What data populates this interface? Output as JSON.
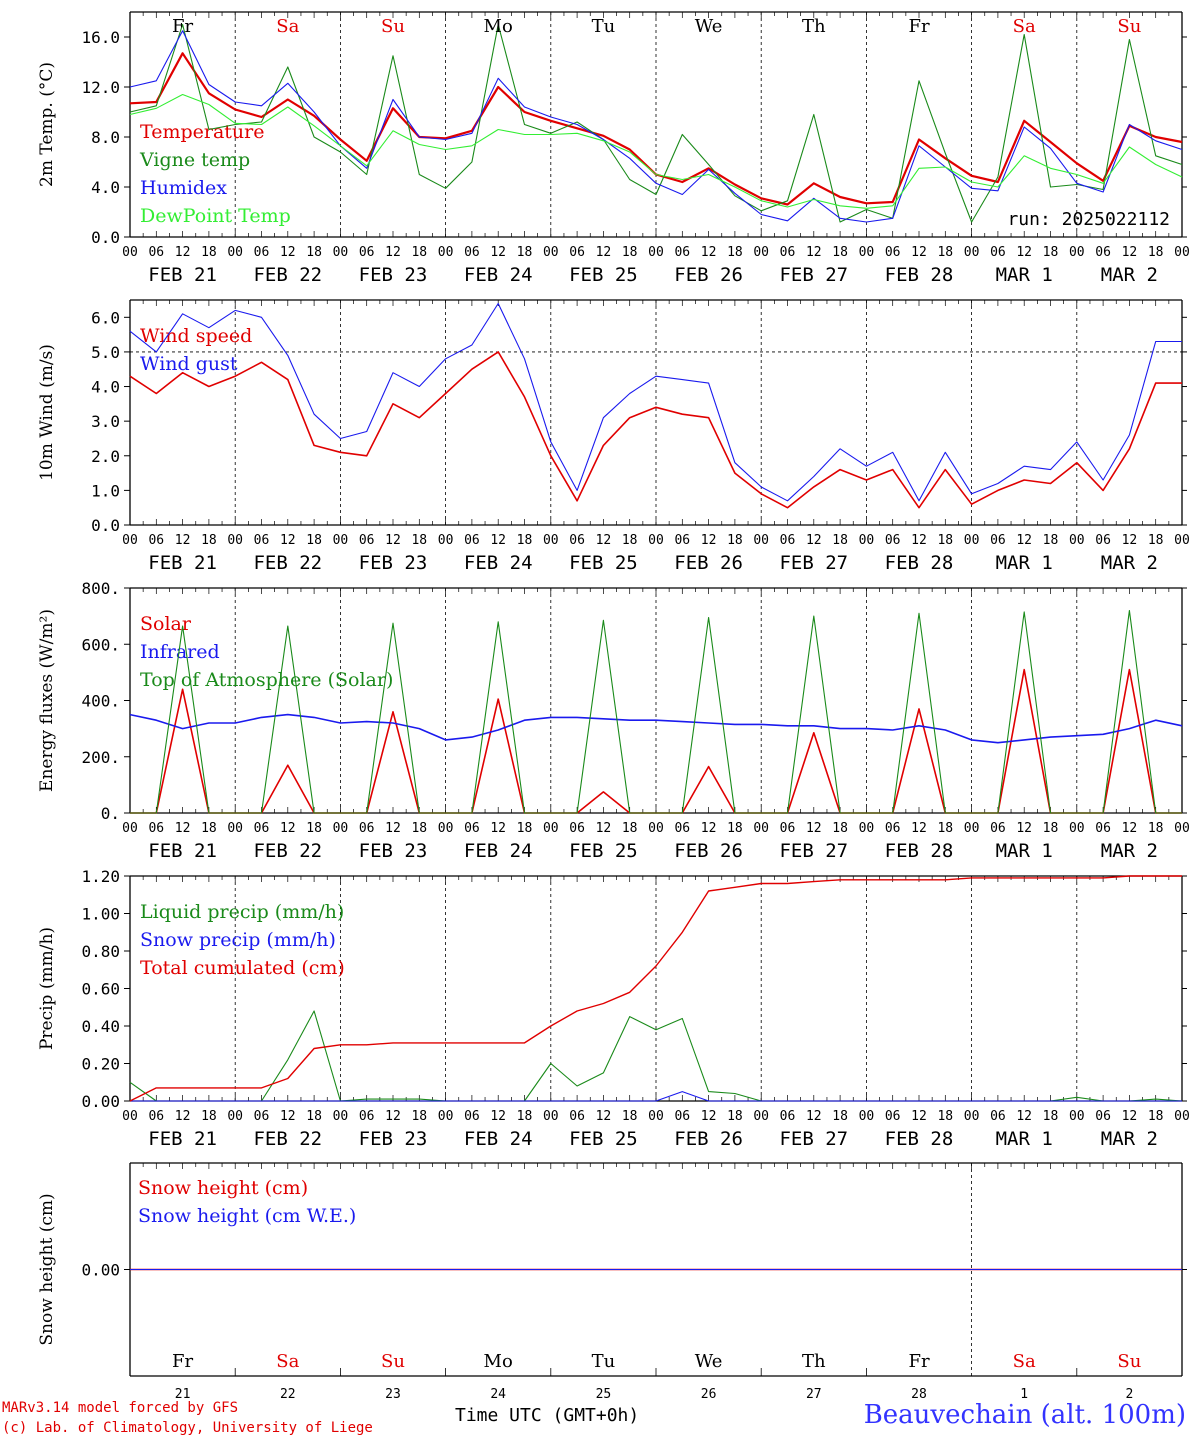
{
  "footer": {
    "model_line": "MARv3.14 model forced by GFS",
    "copyright_line": "(c) Lab. of Climatology, University of Liege",
    "time_label": "Time UTC (GMT+0h)",
    "station": "Beauvechain (alt. 100m)"
  },
  "axis": {
    "hour_ticks": [
      "00",
      "06",
      "12",
      "18"
    ],
    "end_tick": "00",
    "dates": [
      "FEB 21",
      "FEB 22",
      "FEB 23",
      "FEB 24",
      "FEB 25",
      "FEB 26",
      "FEB 27",
      "FEB 28",
      "MAR  1",
      "MAR  2"
    ],
    "weekdays": [
      "Fr",
      "Sa",
      "Su",
      "Mo",
      "Tu",
      "We",
      "Th",
      "Fr",
      "Sa",
      "Su"
    ],
    "weekday_colors": [
      "#000000",
      "#e00000",
      "#e00000",
      "#000000",
      "#000000",
      "#000000",
      "#000000",
      "#000000",
      "#e00000",
      "#e00000"
    ],
    "day_numbers": [
      "21",
      "22",
      "23",
      "24",
      "25",
      "26",
      "27",
      "28",
      "1",
      "2"
    ]
  },
  "colors": {
    "red": "#e00000",
    "green": "#1a8a1a",
    "blue": "#1a1aee",
    "lightgreen": "#33ee33"
  },
  "chart_data": [
    {
      "type": "line",
      "ylabel": "2m Temp. (°C)",
      "ylim": [
        0,
        18
      ],
      "yticks": [
        0,
        4,
        8,
        12,
        16
      ],
      "ytick_labels": [
        "0.0",
        "4.0",
        "8.0",
        "12.0",
        "16.0"
      ],
      "annotation": "run: 2025022112",
      "x": [
        0,
        6,
        12,
        18,
        24,
        30,
        36,
        42,
        48,
        54,
        60,
        66,
        72,
        78,
        84,
        90,
        96,
        102,
        108,
        114,
        120,
        126,
        132,
        138,
        144,
        150,
        156,
        162,
        168,
        174,
        180,
        186,
        192,
        198,
        204,
        210,
        216,
        222,
        228,
        234,
        240
      ],
      "series": [
        {
          "name": "Temperature",
          "color": "#e00000",
          "width": 2.2,
          "values": [
            10.7,
            10.8,
            14.7,
            11.5,
            10.2,
            9.6,
            11.0,
            9.7,
            7.8,
            6.1,
            10.3,
            8.0,
            7.9,
            8.5,
            12.0,
            10.0,
            9.3,
            8.7,
            8.1,
            7.0,
            5.0,
            4.4,
            5.5,
            4.2,
            3.1,
            2.6,
            4.3,
            3.2,
            2.7,
            2.8,
            7.8,
            6.3,
            4.9,
            4.4,
            9.3,
            7.6,
            5.9,
            4.5,
            8.9,
            8.0,
            7.6
          ]
        },
        {
          "name": "Vigne temp",
          "color": "#1a8a1a",
          "width": 1.1,
          "values": [
            10.0,
            10.5,
            17.0,
            8.6,
            9.0,
            9.2,
            13.6,
            8.0,
            6.8,
            5.0,
            14.5,
            5.0,
            3.9,
            6.0,
            17.0,
            9.0,
            8.3,
            9.2,
            7.8,
            4.6,
            3.4,
            8.2,
            5.8,
            3.3,
            2.1,
            2.9,
            9.8,
            1.2,
            2.2,
            1.5,
            12.5,
            6.7,
            1.2,
            4.8,
            16.2,
            4.0,
            4.2,
            3.8,
            15.8,
            6.5,
            5.8
          ]
        },
        {
          "name": "Humidex",
          "color": "#1a1aee",
          "width": 1.1,
          "values": [
            12.0,
            12.5,
            16.5,
            12.2,
            10.8,
            10.5,
            12.3,
            10.0,
            7.3,
            5.5,
            11.0,
            8.0,
            7.8,
            8.3,
            12.7,
            10.4,
            9.6,
            9.0,
            7.8,
            6.3,
            4.3,
            3.4,
            5.4,
            3.5,
            1.8,
            1.3,
            3.1,
            1.5,
            1.2,
            1.5,
            7.3,
            5.6,
            3.9,
            3.7,
            8.8,
            7.1,
            4.3,
            3.6,
            9.0,
            7.7,
            7.0
          ]
        },
        {
          "name": "DewPoint Temp",
          "color": "#33ee33",
          "width": 1.1,
          "values": [
            9.8,
            10.3,
            11.4,
            10.6,
            9.1,
            9.0,
            10.4,
            8.9,
            7.3,
            5.7,
            8.5,
            7.4,
            7.0,
            7.3,
            8.6,
            8.2,
            8.2,
            8.3,
            7.7,
            6.8,
            5.0,
            4.6,
            5.0,
            4.0,
            2.9,
            2.4,
            3.0,
            2.5,
            2.3,
            2.5,
            5.5,
            5.6,
            4.4,
            4.0,
            6.5,
            5.5,
            5.0,
            4.3,
            7.2,
            5.8,
            4.8
          ]
        }
      ]
    },
    {
      "type": "line",
      "ylabel": "10m Wind (m/s)",
      "ylim": [
        0,
        6.5
      ],
      "yticks": [
        0,
        1,
        2,
        3,
        4,
        5,
        6
      ],
      "ytick_labels": [
        "0.0",
        "1.0",
        "2.0",
        "3.0",
        "4.0",
        "5.0",
        "6.0"
      ],
      "ref_line": 5.0,
      "x": [
        0,
        6,
        12,
        18,
        24,
        30,
        36,
        42,
        48,
        54,
        60,
        66,
        72,
        78,
        84,
        90,
        96,
        102,
        108,
        114,
        120,
        126,
        132,
        138,
        144,
        150,
        156,
        162,
        168,
        174,
        180,
        186,
        192,
        198,
        204,
        210,
        216,
        222,
        228,
        234,
        240
      ],
      "series": [
        {
          "name": "Wind speed",
          "color": "#e00000",
          "width": 1.6,
          "values": [
            4.3,
            3.8,
            4.4,
            4.0,
            4.3,
            4.7,
            4.2,
            2.3,
            2.1,
            2.0,
            3.5,
            3.1,
            3.8,
            4.5,
            5.0,
            3.7,
            2.0,
            0.7,
            2.3,
            3.1,
            3.4,
            3.2,
            3.1,
            1.5,
            0.9,
            0.5,
            1.1,
            1.6,
            1.3,
            1.6,
            0.5,
            1.6,
            0.6,
            1.0,
            1.3,
            1.2,
            1.8,
            1.0,
            2.2,
            4.1,
            4.1
          ]
        },
        {
          "name": "Wind gust",
          "color": "#1a1aee",
          "width": 1.1,
          "values": [
            5.6,
            5.0,
            6.1,
            5.7,
            6.2,
            6.0,
            4.9,
            3.2,
            2.5,
            2.7,
            4.4,
            4.0,
            4.8,
            5.2,
            6.4,
            4.8,
            2.4,
            1.0,
            3.1,
            3.8,
            4.3,
            4.2,
            4.1,
            1.8,
            1.1,
            0.7,
            1.4,
            2.2,
            1.7,
            2.1,
            0.7,
            2.1,
            0.9,
            1.2,
            1.7,
            1.6,
            2.4,
            1.3,
            2.6,
            5.3,
            5.3
          ]
        }
      ]
    },
    {
      "type": "line",
      "ylabel": "Energy fluxes (W/m²)",
      "ylim": [
        0,
        800
      ],
      "yticks": [
        0,
        200,
        400,
        600,
        800
      ],
      "ytick_labels": [
        "0.",
        "200.",
        "400.",
        "600.",
        "800."
      ],
      "x": [
        0,
        6,
        12,
        18,
        24,
        30,
        36,
        42,
        48,
        54,
        60,
        66,
        72,
        78,
        84,
        90,
        96,
        102,
        108,
        114,
        120,
        126,
        132,
        138,
        144,
        150,
        156,
        162,
        168,
        174,
        180,
        186,
        192,
        198,
        204,
        210,
        216,
        222,
        228,
        234,
        240
      ],
      "series": [
        {
          "name": "Solar",
          "color": "#e00000",
          "width": 1.6,
          "values": [
            0,
            0,
            440,
            0,
            0,
            0,
            170,
            0,
            0,
            0,
            360,
            0,
            0,
            0,
            405,
            0,
            0,
            0,
            75,
            0,
            0,
            0,
            165,
            0,
            0,
            0,
            285,
            0,
            0,
            0,
            370,
            0,
            0,
            0,
            510,
            0,
            0,
            0,
            510,
            0,
            0
          ]
        },
        {
          "name": "Infrared",
          "color": "#1a1aee",
          "width": 1.6,
          "values": [
            350,
            330,
            300,
            320,
            320,
            340,
            350,
            340,
            320,
            325,
            320,
            300,
            260,
            270,
            295,
            330,
            340,
            340,
            335,
            330,
            330,
            325,
            320,
            315,
            315,
            310,
            310,
            300,
            300,
            295,
            310,
            295,
            260,
            250,
            260,
            270,
            275,
            280,
            300,
            330,
            310
          ]
        },
        {
          "name": "Top of Atmosphere (Solar)",
          "color": "#1a8a1a",
          "width": 1.1,
          "values": [
            0,
            0,
            665,
            0,
            0,
            0,
            665,
            0,
            0,
            0,
            675,
            0,
            0,
            0,
            680,
            0,
            0,
            0,
            685,
            0,
            0,
            0,
            695,
            0,
            0,
            0,
            700,
            0,
            0,
            0,
            710,
            0,
            0,
            0,
            715,
            0,
            0,
            0,
            720,
            0,
            0
          ]
        }
      ]
    },
    {
      "type": "line",
      "ylabel": "Precip (mm/h)",
      "ylim": [
        0,
        1.2
      ],
      "yticks": [
        0,
        0.2,
        0.4,
        0.6,
        0.8,
        1.0,
        1.2
      ],
      "ytick_labels": [
        "0.00",
        "0.20",
        "0.40",
        "0.60",
        "0.80",
        "1.00",
        "1.20"
      ],
      "x": [
        0,
        6,
        12,
        18,
        24,
        30,
        36,
        42,
        48,
        54,
        60,
        66,
        72,
        78,
        84,
        90,
        96,
        102,
        108,
        114,
        120,
        126,
        132,
        138,
        144,
        150,
        156,
        162,
        168,
        174,
        180,
        186,
        192,
        198,
        204,
        210,
        216,
        222,
        228,
        234,
        240
      ],
      "series": [
        {
          "name": "Liquid precip (mm/h)",
          "color": "#1a8a1a",
          "width": 1.1,
          "values": [
            0.1,
            0.0,
            0.0,
            0.0,
            0.0,
            0.0,
            0.22,
            0.48,
            0.0,
            0.01,
            0.01,
            0.01,
            0.0,
            0.0,
            0.0,
            0.0,
            0.2,
            0.08,
            0.15,
            0.45,
            0.38,
            0.44,
            0.05,
            0.04,
            0.0,
            0.0,
            0.0,
            0.0,
            0.0,
            0.0,
            0.0,
            0.0,
            0.0,
            0.0,
            0.0,
            0.0,
            0.02,
            0.0,
            0.0,
            0.01,
            0.0
          ]
        },
        {
          "name": "Snow precip (mm/h)",
          "color": "#1a1aee",
          "width": 1.1,
          "values": [
            0,
            0,
            0,
            0,
            0,
            0,
            0,
            0,
            0,
            0,
            0,
            0,
            0,
            0,
            0,
            0,
            0,
            0,
            0,
            0,
            0,
            0.05,
            0,
            0,
            0,
            0,
            0,
            0,
            0,
            0,
            0,
            0,
            0,
            0,
            0,
            0,
            0,
            0,
            0,
            0,
            0
          ]
        },
        {
          "name": "Total cumulated (cm)",
          "color": "#e00000",
          "width": 1.4,
          "values": [
            0.0,
            0.07,
            0.07,
            0.07,
            0.07,
            0.07,
            0.12,
            0.28,
            0.3,
            0.3,
            0.31,
            0.31,
            0.31,
            0.31,
            0.31,
            0.31,
            0.4,
            0.48,
            0.52,
            0.58,
            0.72,
            0.9,
            1.12,
            1.14,
            1.16,
            1.16,
            1.17,
            1.18,
            1.18,
            1.18,
            1.18,
            1.18,
            1.19,
            1.19,
            1.19,
            1.19,
            1.19,
            1.19,
            1.2,
            1.2,
            1.2
          ]
        }
      ]
    },
    {
      "type": "line",
      "ylabel": "Snow height (cm)",
      "yticks": [
        0
      ],
      "ytick_labels": [
        "0.00"
      ],
      "x": [
        0,
        240
      ],
      "series": [
        {
          "name": "Snow height (cm)",
          "color": "#e00000",
          "width": 1.4,
          "values": [
            0,
            0
          ]
        },
        {
          "name": "Snow height (cm W.E.)",
          "color": "#1a1aee",
          "width": 1.1,
          "values": [
            0,
            0
          ]
        }
      ]
    }
  ]
}
